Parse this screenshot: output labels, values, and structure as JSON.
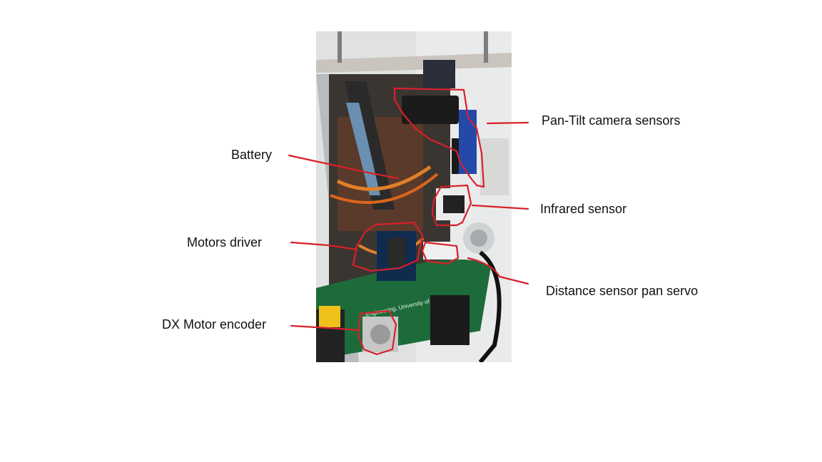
{
  "labels": {
    "battery": "Battery",
    "motors_driver": "Motors driver",
    "dx_motor_encoder": "DX Motor encoder",
    "pan_tilt": "Pan-Tilt camera sensors",
    "infrared": "Infrared sensor",
    "distance_servo": "Distance sensor pan servo"
  },
  "photo": {
    "pcb_text_1": "Engineering, University of Padova"
  },
  "colors": {
    "annotation": "#d8202a",
    "pcb": "#1d6b3a",
    "background": "#ffffff"
  }
}
